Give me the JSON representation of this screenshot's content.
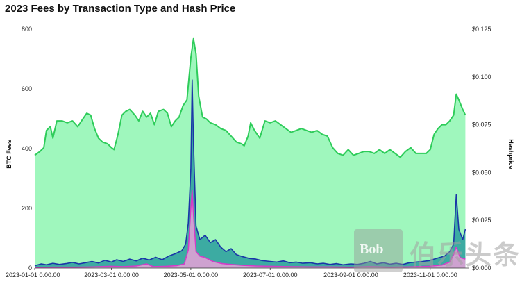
{
  "chart_data": {
    "type": "area",
    "title": "2023 Fees by Transaction Type and Hash Price",
    "ylabel": "BTC Fees",
    "y2label": "Hashprice",
    "ylim": [
      0,
      800
    ],
    "y2lim": [
      0,
      0.125
    ],
    "yticks": [
      "0",
      "200",
      "400",
      "600",
      "800"
    ],
    "y2ticks": [
      "$0.000",
      "$0.025",
      "$0.050",
      "$0.075",
      "$0.100",
      "$0.125"
    ],
    "xlim": [
      "2023-01-01",
      "2023-12-01"
    ],
    "xticks": [
      "2023-01-01 0:00:00",
      "2023-03-01 0:00:00",
      "2023-05-01 0:00:00",
      "2023-07-01 0:00:00",
      "2023-09-01 0:00:00",
      "2023-11-01 0:00:00"
    ],
    "grid": false,
    "series": [
      {
        "axis": "right",
        "color": "#2ecc5a",
        "fill": "#9ff7bd",
        "values": [
          [
            "2023-01-01",
            0.059
          ],
          [
            "2023-01-05",
            0.061
          ],
          [
            "2023-01-08",
            0.063
          ],
          [
            "2023-01-10",
            0.072
          ],
          [
            "2023-01-13",
            0.074
          ],
          [
            "2023-01-15",
            0.068
          ],
          [
            "2023-01-18",
            0.077
          ],
          [
            "2023-01-22",
            0.077
          ],
          [
            "2023-01-26",
            0.076
          ],
          [
            "2023-01-30",
            0.077
          ],
          [
            "2023-02-03",
            0.074
          ],
          [
            "2023-02-07",
            0.078
          ],
          [
            "2023-02-10",
            0.081
          ],
          [
            "2023-02-13",
            0.08
          ],
          [
            "2023-02-16",
            0.073
          ],
          [
            "2023-02-19",
            0.068
          ],
          [
            "2023-02-22",
            0.066
          ],
          [
            "2023-02-26",
            0.065
          ],
          [
            "2023-03-01",
            0.063
          ],
          [
            "2023-03-03",
            0.062
          ],
          [
            "2023-03-06",
            0.07
          ],
          [
            "2023-03-09",
            0.08
          ],
          [
            "2023-03-12",
            0.082
          ],
          [
            "2023-03-15",
            0.083
          ],
          [
            "2023-03-19",
            0.08
          ],
          [
            "2023-03-22",
            0.077
          ],
          [
            "2023-03-25",
            0.082
          ],
          [
            "2023-03-28",
            0.079
          ],
          [
            "2023-03-31",
            0.081
          ],
          [
            "2023-04-03",
            0.075
          ],
          [
            "2023-04-06",
            0.082
          ],
          [
            "2023-04-10",
            0.083
          ],
          [
            "2023-04-13",
            0.081
          ],
          [
            "2023-04-16",
            0.074
          ],
          [
            "2023-04-19",
            0.077
          ],
          [
            "2023-04-22",
            0.079
          ],
          [
            "2023-04-25",
            0.085
          ],
          [
            "2023-04-28",
            0.088
          ],
          [
            "2023-05-01",
            0.11
          ],
          [
            "2023-05-03",
            0.12
          ],
          [
            "2023-05-05",
            0.112
          ],
          [
            "2023-05-07",
            0.09
          ],
          [
            "2023-05-10",
            0.079
          ],
          [
            "2023-05-13",
            0.078
          ],
          [
            "2023-05-16",
            0.076
          ],
          [
            "2023-05-20",
            0.075
          ],
          [
            "2023-05-24",
            0.073
          ],
          [
            "2023-05-28",
            0.072
          ],
          [
            "2023-06-01",
            0.069
          ],
          [
            "2023-06-05",
            0.066
          ],
          [
            "2023-06-09",
            0.065
          ],
          [
            "2023-06-11",
            0.064
          ],
          [
            "2023-06-14",
            0.069
          ],
          [
            "2023-06-16",
            0.076
          ],
          [
            "2023-06-19",
            0.072
          ],
          [
            "2023-06-23",
            0.068
          ],
          [
            "2023-06-27",
            0.077
          ],
          [
            "2023-07-01",
            0.076
          ],
          [
            "2023-07-05",
            0.077
          ],
          [
            "2023-07-09",
            0.075
          ],
          [
            "2023-07-13",
            0.073
          ],
          [
            "2023-07-17",
            0.071
          ],
          [
            "2023-07-21",
            0.072
          ],
          [
            "2023-07-25",
            0.073
          ],
          [
            "2023-07-29",
            0.072
          ],
          [
            "2023-08-02",
            0.071
          ],
          [
            "2023-08-06",
            0.072
          ],
          [
            "2023-08-10",
            0.07
          ],
          [
            "2023-08-14",
            0.069
          ],
          [
            "2023-08-18",
            0.063
          ],
          [
            "2023-08-22",
            0.06
          ],
          [
            "2023-08-26",
            0.059
          ],
          [
            "2023-08-30",
            0.062
          ],
          [
            "2023-09-03",
            0.059
          ],
          [
            "2023-09-07",
            0.06
          ],
          [
            "2023-09-11",
            0.061
          ],
          [
            "2023-09-15",
            0.061
          ],
          [
            "2023-09-19",
            0.06
          ],
          [
            "2023-09-23",
            0.062
          ],
          [
            "2023-09-27",
            0.06
          ],
          [
            "2023-10-01",
            0.062
          ],
          [
            "2023-10-05",
            0.06
          ],
          [
            "2023-10-09",
            0.058
          ],
          [
            "2023-10-13",
            0.061
          ],
          [
            "2023-10-17",
            0.063
          ],
          [
            "2023-10-21",
            0.06
          ],
          [
            "2023-10-25",
            0.06
          ],
          [
            "2023-10-29",
            0.06
          ],
          [
            "2023-11-01",
            0.062
          ],
          [
            "2023-11-04",
            0.07
          ],
          [
            "2023-11-07",
            0.073
          ],
          [
            "2023-11-10",
            0.075
          ],
          [
            "2023-11-13",
            0.075
          ],
          [
            "2023-11-16",
            0.077
          ],
          [
            "2023-11-19",
            0.08
          ],
          [
            "2023-11-21",
            0.091
          ],
          [
            "2023-11-23",
            0.088
          ],
          [
            "2023-11-26",
            0.083
          ],
          [
            "2023-11-28",
            0.08
          ]
        ]
      },
      {
        "axis": "left",
        "color": "#1a35a8",
        "fill": "#2a9e9e",
        "values": [
          [
            "2023-01-01",
            8
          ],
          [
            "2023-01-06",
            14
          ],
          [
            "2023-01-10",
            11
          ],
          [
            "2023-01-15",
            16
          ],
          [
            "2023-01-20",
            12
          ],
          [
            "2023-01-25",
            15
          ],
          [
            "2023-01-30",
            19
          ],
          [
            "2023-02-04",
            14
          ],
          [
            "2023-02-09",
            18
          ],
          [
            "2023-02-14",
            22
          ],
          [
            "2023-02-19",
            17
          ],
          [
            "2023-02-24",
            26
          ],
          [
            "2023-03-01",
            20
          ],
          [
            "2023-03-05",
            28
          ],
          [
            "2023-03-10",
            22
          ],
          [
            "2023-03-15",
            30
          ],
          [
            "2023-03-20",
            24
          ],
          [
            "2023-03-25",
            33
          ],
          [
            "2023-03-30",
            27
          ],
          [
            "2023-04-04",
            36
          ],
          [
            "2023-04-09",
            28
          ],
          [
            "2023-04-14",
            40
          ],
          [
            "2023-04-19",
            48
          ],
          [
            "2023-04-24",
            58
          ],
          [
            "2023-04-27",
            80
          ],
          [
            "2023-04-29",
            150
          ],
          [
            "2023-05-01",
            330
          ],
          [
            "2023-05-02",
            630
          ],
          [
            "2023-05-03",
            420
          ],
          [
            "2023-05-05",
            140
          ],
          [
            "2023-05-08",
            95
          ],
          [
            "2023-05-12",
            110
          ],
          [
            "2023-05-16",
            85
          ],
          [
            "2023-05-20",
            95
          ],
          [
            "2023-05-24",
            70
          ],
          [
            "2023-05-28",
            55
          ],
          [
            "2023-06-01",
            65
          ],
          [
            "2023-06-05",
            45
          ],
          [
            "2023-06-10",
            38
          ],
          [
            "2023-06-15",
            32
          ],
          [
            "2023-06-20",
            30
          ],
          [
            "2023-06-25",
            25
          ],
          [
            "2023-07-01",
            22
          ],
          [
            "2023-07-06",
            20
          ],
          [
            "2023-07-11",
            24
          ],
          [
            "2023-07-16",
            18
          ],
          [
            "2023-07-21",
            20
          ],
          [
            "2023-07-26",
            16
          ],
          [
            "2023-08-01",
            18
          ],
          [
            "2023-08-06",
            14
          ],
          [
            "2023-08-11",
            16
          ],
          [
            "2023-08-16",
            12
          ],
          [
            "2023-08-21",
            15
          ],
          [
            "2023-08-26",
            11
          ],
          [
            "2023-09-01",
            14
          ],
          [
            "2023-09-06",
            12
          ],
          [
            "2023-09-11",
            16
          ],
          [
            "2023-09-16",
            22
          ],
          [
            "2023-09-21",
            14
          ],
          [
            "2023-09-26",
            18
          ],
          [
            "2023-10-01",
            13
          ],
          [
            "2023-10-06",
            16
          ],
          [
            "2023-10-11",
            12
          ],
          [
            "2023-10-16",
            18
          ],
          [
            "2023-10-21",
            20
          ],
          [
            "2023-10-26",
            22
          ],
          [
            "2023-10-31",
            25
          ],
          [
            "2023-11-04",
            30
          ],
          [
            "2023-11-08",
            35
          ],
          [
            "2023-11-12",
            40
          ],
          [
            "2023-11-16",
            55
          ],
          [
            "2023-11-19",
            80
          ],
          [
            "2023-11-21",
            245
          ],
          [
            "2023-11-23",
            130
          ],
          [
            "2023-11-26",
            95
          ],
          [
            "2023-11-28",
            130
          ]
        ]
      },
      {
        "axis": "left",
        "color": "#d43cc8",
        "fill": "#e8a0d8",
        "values": [
          [
            "2023-01-01",
            2
          ],
          [
            "2023-01-15",
            3
          ],
          [
            "2023-02-01",
            3
          ],
          [
            "2023-02-15",
            4
          ],
          [
            "2023-02-28",
            6
          ],
          [
            "2023-03-10",
            5
          ],
          [
            "2023-03-20",
            7
          ],
          [
            "2023-03-28",
            14
          ],
          [
            "2023-04-02",
            5
          ],
          [
            "2023-04-12",
            6
          ],
          [
            "2023-04-20",
            8
          ],
          [
            "2023-04-26",
            14
          ],
          [
            "2023-04-29",
            60
          ],
          [
            "2023-05-01",
            200
          ],
          [
            "2023-05-02",
            260
          ],
          [
            "2023-05-03",
            180
          ],
          [
            "2023-05-05",
            55
          ],
          [
            "2023-05-08",
            40
          ],
          [
            "2023-05-12",
            35
          ],
          [
            "2023-05-18",
            22
          ],
          [
            "2023-05-25",
            15
          ],
          [
            "2023-06-01",
            12
          ],
          [
            "2023-06-10",
            9
          ],
          [
            "2023-06-20",
            7
          ],
          [
            "2023-07-01",
            6
          ],
          [
            "2023-07-15",
            5
          ],
          [
            "2023-08-01",
            4
          ],
          [
            "2023-08-15",
            4
          ],
          [
            "2023-09-01",
            3
          ],
          [
            "2023-09-15",
            5
          ],
          [
            "2023-10-01",
            3
          ],
          [
            "2023-10-15",
            4
          ],
          [
            "2023-10-31",
            6
          ],
          [
            "2023-11-10",
            10
          ],
          [
            "2023-11-16",
            20
          ],
          [
            "2023-11-19",
            45
          ],
          [
            "2023-11-21",
            70
          ],
          [
            "2023-11-24",
            35
          ],
          [
            "2023-11-28",
            30
          ]
        ]
      }
    ]
  },
  "watermark": {
    "badge": "Bob",
    "text": "伯乐头条"
  }
}
